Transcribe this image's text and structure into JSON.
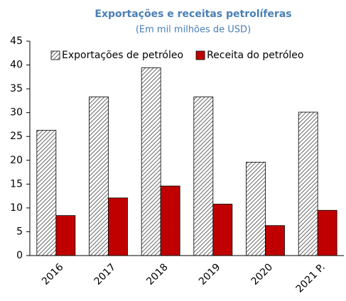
{
  "chart_data": {
    "type": "bar",
    "title": "Exportações e receitas petrolíferas",
    "subtitle": "(Em mil milhões de USD)",
    "categories": [
      "2016",
      "2017",
      "2018",
      "2019",
      "2020",
      "2021 P."
    ],
    "series": [
      {
        "name": "Exportações de petróleo",
        "color": "#404040",
        "pattern": "hatch",
        "values": [
          26.3,
          33.3,
          39.4,
          33.3,
          19.6,
          30.1
        ]
      },
      {
        "name": "Receita do petróleo",
        "color": "#c00000",
        "values": [
          8.4,
          12.1,
          14.6,
          10.8,
          6.3,
          9.5
        ]
      }
    ],
    "ylim": [
      0,
      45
    ],
    "yticks": [
      0,
      5,
      10,
      15,
      20,
      25,
      30,
      35,
      40,
      45
    ],
    "legend": "top"
  }
}
